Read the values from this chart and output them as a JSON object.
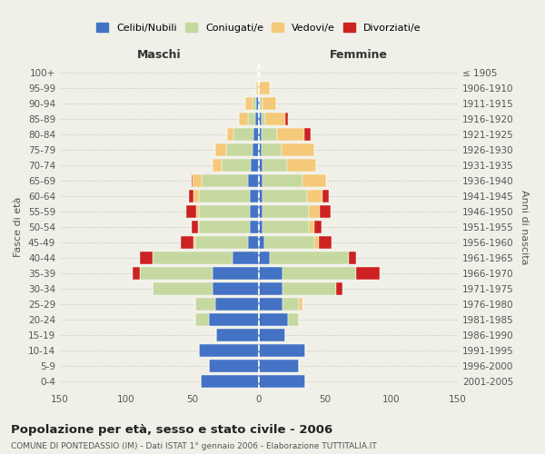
{
  "age_groups": [
    "0-4",
    "5-9",
    "10-14",
    "15-19",
    "20-24",
    "25-29",
    "30-34",
    "35-39",
    "40-44",
    "45-49",
    "50-54",
    "55-59",
    "60-64",
    "65-69",
    "70-74",
    "75-79",
    "80-84",
    "85-89",
    "90-94",
    "95-99",
    "100+"
  ],
  "birth_years": [
    "2001-2005",
    "1996-2000",
    "1991-1995",
    "1986-1990",
    "1981-1985",
    "1976-1980",
    "1971-1975",
    "1966-1970",
    "1961-1965",
    "1956-1960",
    "1951-1955",
    "1946-1950",
    "1941-1945",
    "1936-1940",
    "1931-1935",
    "1926-1930",
    "1921-1925",
    "1916-1920",
    "1911-1915",
    "1906-1910",
    "≤ 1905"
  ],
  "maschi": {
    "celibi": [
      44,
      38,
      45,
      32,
      38,
      33,
      35,
      35,
      20,
      8,
      7,
      7,
      7,
      8,
      6,
      5,
      4,
      3,
      2,
      1,
      1
    ],
    "coniugati": [
      0,
      0,
      0,
      0,
      10,
      15,
      45,
      55,
      60,
      40,
      38,
      38,
      38,
      35,
      22,
      20,
      15,
      5,
      3,
      0,
      0
    ],
    "vedovi": [
      0,
      0,
      0,
      0,
      0,
      0,
      0,
      0,
      0,
      1,
      1,
      2,
      4,
      7,
      7,
      8,
      5,
      7,
      5,
      1,
      0
    ],
    "divorziati": [
      0,
      0,
      0,
      0,
      0,
      0,
      0,
      5,
      10,
      10,
      5,
      8,
      4,
      1,
      0,
      0,
      0,
      0,
      0,
      0,
      0
    ]
  },
  "femmine": {
    "nubili": [
      35,
      30,
      35,
      20,
      22,
      18,
      18,
      18,
      8,
      4,
      3,
      3,
      3,
      3,
      3,
      2,
      2,
      2,
      1,
      0,
      0
    ],
    "coniugate": [
      0,
      0,
      0,
      0,
      8,
      12,
      40,
      55,
      60,
      38,
      35,
      35,
      33,
      30,
      18,
      15,
      12,
      3,
      2,
      0,
      0
    ],
    "vedove": [
      0,
      0,
      0,
      0,
      0,
      3,
      0,
      0,
      0,
      3,
      4,
      8,
      12,
      18,
      22,
      25,
      20,
      15,
      10,
      8,
      1
    ],
    "divorziate": [
      0,
      0,
      0,
      0,
      0,
      0,
      5,
      18,
      5,
      10,
      5,
      8,
      5,
      0,
      0,
      0,
      5,
      2,
      0,
      0,
      0
    ]
  },
  "colors": {
    "celibi_nubili": "#4472C4",
    "coniugati": "#C5D8A0",
    "vedovi": "#F5C97A",
    "divorziati": "#CC2222"
  },
  "xlim": 150,
  "title": "Popolazione per età, sesso e stato civile - 2006",
  "subtitle": "COMUNE DI PONTEDASSIO (IM) - Dati ISTAT 1° gennaio 2006 - Elaborazione TUTTITALIA.IT",
  "ylabel_left": "Fasce di età",
  "ylabel_right": "Anni di nascita",
  "xlabel_maschi": "Maschi",
  "xlabel_femmine": "Femmine",
  "legend_labels": [
    "Celibi/Nubili",
    "Coniugati/e",
    "Vedovi/e",
    "Divorziati/e"
  ],
  "bg_color": "#f0f0e8",
  "grid_color": "#cccccc"
}
